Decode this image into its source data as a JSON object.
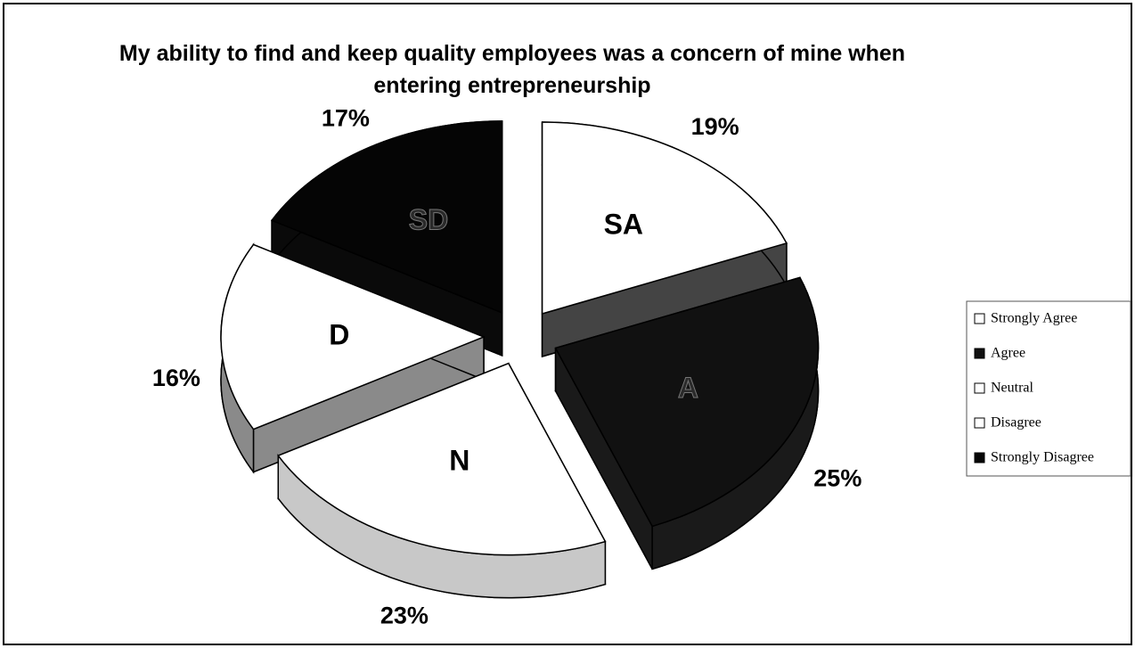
{
  "chart_data": {
    "type": "pie3d",
    "title": "My ability to find and keep quality employees was a concern of mine when entering entrepreneurship",
    "categories": [
      "Strongly Agree",
      "Agree",
      "Neutral",
      "Disagree",
      "Strongly Disagree"
    ],
    "slice_labels": [
      "SA",
      "A",
      "N",
      "D",
      "SD"
    ],
    "values": [
      19,
      25,
      23,
      16,
      17
    ],
    "value_labels": [
      "19%",
      "25%",
      "23%",
      "16%",
      "17%"
    ],
    "colors": [
      "#ffffff",
      "#111111",
      "#ffffff",
      "#ffffff",
      "#050505"
    ],
    "side_colors": [
      "#444444",
      "#1a1a1a",
      "#c8c8c8",
      "#8a8a8a",
      "#0a0a0a"
    ],
    "legend": "right"
  }
}
